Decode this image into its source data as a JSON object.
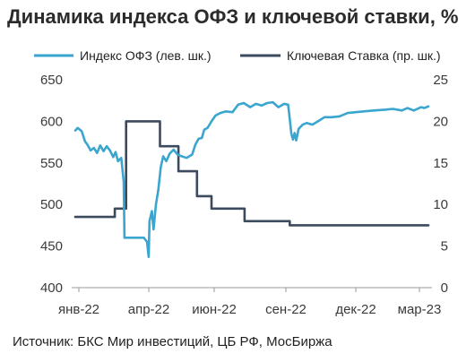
{
  "title": "Динамика индекса ОФЗ и ключевой ставки, %",
  "source": "Источник: БКС Мир инвестиций, ЦБ РФ, МосБиржа",
  "colors": {
    "ofz": "#3aa6cf",
    "rate": "#3c4a5e",
    "axis": "#9a9a9a"
  },
  "chart_data": {
    "type": "line",
    "legend_position": "top",
    "grid": false,
    "x_ticks": [
      "янв-22",
      "апр-22",
      "июн-22",
      "сен-22",
      "дек-22",
      "мар-23"
    ],
    "y_left": {
      "ticks": [
        400,
        450,
        500,
        550,
        600,
        650
      ],
      "range": [
        400,
        650
      ]
    },
    "y_right": {
      "ticks": [
        0,
        5,
        10,
        15,
        20,
        25
      ],
      "range": [
        0,
        25
      ]
    },
    "series": [
      {
        "name": "Индекс ОФЗ (лев. шк.)",
        "axis": "left",
        "points": [
          [
            "2021-12-27",
            589
          ],
          [
            "2021-12-30",
            592
          ],
          [
            "2022-01-04",
            588
          ],
          [
            "2022-01-08",
            576
          ],
          [
            "2022-01-11",
            572
          ],
          [
            "2022-01-15",
            565
          ],
          [
            "2022-01-19",
            568
          ],
          [
            "2022-01-23",
            562
          ],
          [
            "2022-01-27",
            571
          ],
          [
            "2022-01-31",
            564
          ],
          [
            "2022-02-04",
            570
          ],
          [
            "2022-02-08",
            565
          ],
          [
            "2022-02-12",
            557
          ],
          [
            "2022-02-15",
            563
          ],
          [
            "2022-02-18",
            552
          ],
          [
            "2022-02-22",
            556
          ],
          [
            "2022-02-25",
            528
          ],
          [
            "2022-02-26",
            460
          ],
          [
            "2022-03-10",
            460
          ],
          [
            "2022-03-22",
            460
          ],
          [
            "2022-03-26",
            455
          ],
          [
            "2022-03-28",
            437
          ],
          [
            "2022-03-29",
            480
          ],
          [
            "2022-04-01",
            492
          ],
          [
            "2022-04-03",
            470
          ],
          [
            "2022-04-06",
            500
          ],
          [
            "2022-04-09",
            518
          ],
          [
            "2022-04-12",
            545
          ],
          [
            "2022-04-15",
            558
          ],
          [
            "2022-04-19",
            552
          ],
          [
            "2022-04-23",
            561
          ],
          [
            "2022-04-28",
            566
          ],
          [
            "2022-05-03",
            560
          ],
          [
            "2022-05-08",
            558
          ],
          [
            "2022-05-14",
            556
          ],
          [
            "2022-05-21",
            560
          ],
          [
            "2022-05-25",
            572
          ],
          [
            "2022-05-29",
            579
          ],
          [
            "2022-06-02",
            580
          ],
          [
            "2022-06-05",
            590
          ],
          [
            "2022-06-09",
            592
          ],
          [
            "2022-06-14",
            600
          ],
          [
            "2022-06-19",
            607
          ],
          [
            "2022-06-25",
            610
          ],
          [
            "2022-07-02",
            612
          ],
          [
            "2022-07-10",
            611
          ],
          [
            "2022-07-17",
            620
          ],
          [
            "2022-07-24",
            622
          ],
          [
            "2022-08-01",
            617
          ],
          [
            "2022-08-08",
            621
          ],
          [
            "2022-08-15",
            619
          ],
          [
            "2022-08-22",
            622
          ],
          [
            "2022-08-29",
            623
          ],
          [
            "2022-09-05",
            617
          ],
          [
            "2022-09-12",
            621
          ],
          [
            "2022-09-17",
            620
          ],
          [
            "2022-09-19",
            603
          ],
          [
            "2022-09-21",
            585
          ],
          [
            "2022-09-23",
            578
          ],
          [
            "2022-09-25",
            586
          ],
          [
            "2022-09-27",
            577
          ],
          [
            "2022-09-30",
            591
          ],
          [
            "2022-10-05",
            596
          ],
          [
            "2022-10-10",
            598
          ],
          [
            "2022-10-17",
            596
          ],
          [
            "2022-10-24",
            600
          ],
          [
            "2022-11-01",
            605
          ],
          [
            "2022-11-10",
            605
          ],
          [
            "2022-11-20",
            606
          ],
          [
            "2022-11-30",
            610
          ],
          [
            "2022-12-10",
            611
          ],
          [
            "2022-12-20",
            612
          ],
          [
            "2023-01-01",
            613
          ],
          [
            "2023-01-15",
            614
          ],
          [
            "2023-01-25",
            615
          ],
          [
            "2023-02-05",
            613
          ],
          [
            "2023-02-12",
            616
          ],
          [
            "2023-02-20",
            613
          ],
          [
            "2023-03-01",
            617
          ],
          [
            "2023-03-05",
            616
          ],
          [
            "2023-03-10",
            618
          ]
        ]
      },
      {
        "name": "Ключевая Ставка (пр. шк.)",
        "axis": "right",
        "points": [
          [
            "2021-12-27",
            8.5
          ],
          [
            "2022-02-14",
            8.5
          ],
          [
            "2022-02-14",
            9.5
          ],
          [
            "2022-02-28",
            9.5
          ],
          [
            "2022-02-28",
            20
          ],
          [
            "2022-04-11",
            20
          ],
          [
            "2022-04-11",
            17
          ],
          [
            "2022-05-04",
            17
          ],
          [
            "2022-05-04",
            14
          ],
          [
            "2022-05-27",
            14
          ],
          [
            "2022-05-27",
            11
          ],
          [
            "2022-06-14",
            11
          ],
          [
            "2022-06-14",
            9.5
          ],
          [
            "2022-07-25",
            9.5
          ],
          [
            "2022-07-25",
            8
          ],
          [
            "2022-09-19",
            8
          ],
          [
            "2022-09-19",
            7.5
          ],
          [
            "2023-03-10",
            7.5
          ]
        ]
      }
    ]
  }
}
